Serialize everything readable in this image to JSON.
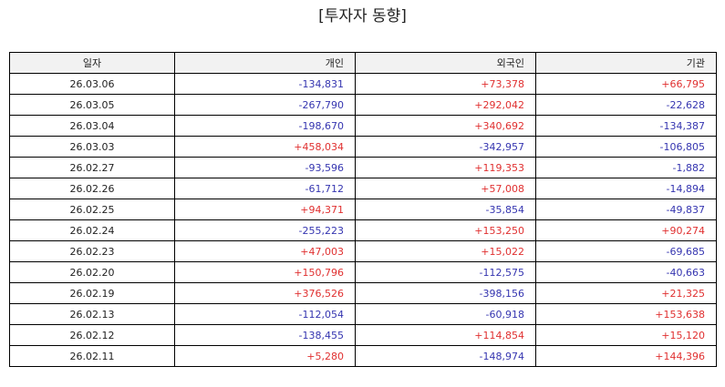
{
  "title": "[투자자 동향]",
  "colors": {
    "positive": "#e03030",
    "negative": "#3535b0"
  },
  "table": {
    "headers": [
      "일자",
      "개인",
      "외국인",
      "기관"
    ],
    "rows": [
      [
        "26.03.06",
        "-134,831",
        "+73,378",
        "+66,795"
      ],
      [
        "26.03.05",
        "-267,790",
        "+292,042",
        "-22,628"
      ],
      [
        "26.03.04",
        "-198,670",
        "+340,692",
        "-134,387"
      ],
      [
        "26.03.03",
        "+458,034",
        "-342,957",
        "-106,805"
      ],
      [
        "26.02.27",
        "-93,596",
        "+119,353",
        "-1,882"
      ],
      [
        "26.02.26",
        "-61,712",
        "+57,008",
        "-14,894"
      ],
      [
        "26.02.25",
        "+94,371",
        "-35,854",
        "-49,837"
      ],
      [
        "26.02.24",
        "-255,223",
        "+153,250",
        "+90,274"
      ],
      [
        "26.02.23",
        "+47,003",
        "+15,022",
        "-69,685"
      ],
      [
        "26.02.20",
        "+150,796",
        "-112,575",
        "-40,663"
      ],
      [
        "26.02.19",
        "+376,526",
        "-398,156",
        "+21,325"
      ],
      [
        "26.02.13",
        "-112,054",
        "-60,918",
        "+153,638"
      ],
      [
        "26.02.12",
        "-138,455",
        "+114,854",
        "+15,120"
      ],
      [
        "26.02.11",
        "+5,280",
        "-148,974",
        "+144,396"
      ]
    ]
  }
}
